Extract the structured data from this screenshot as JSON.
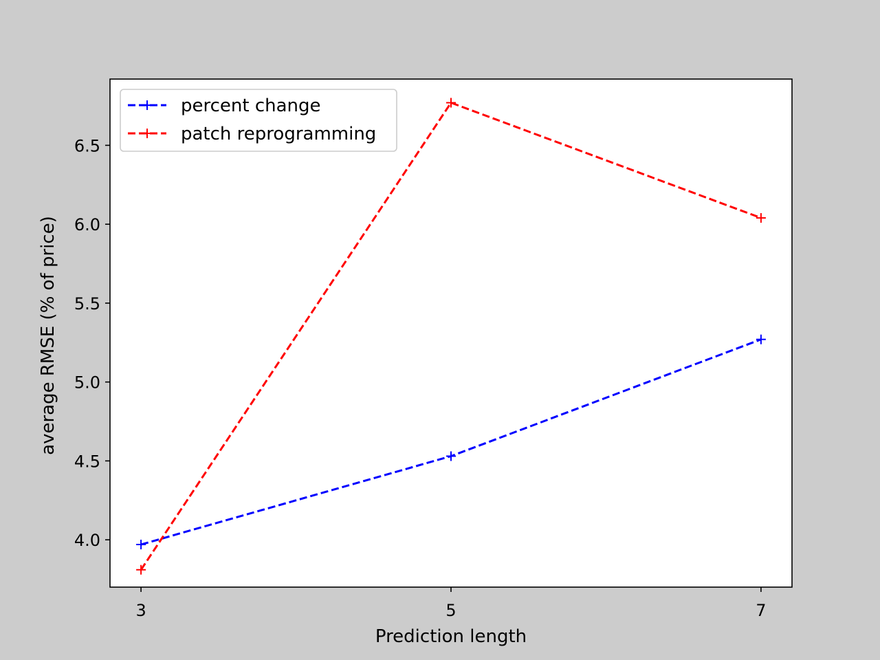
{
  "chart_data": {
    "type": "line",
    "title": "",
    "xlabel": "Prediction length",
    "ylabel": "average RMSE (% of price)",
    "x": [
      3,
      5,
      7
    ],
    "xticks": [
      "3",
      "5",
      "7"
    ],
    "xlim": [
      2.8,
      7.2
    ],
    "yticks": [
      "4.0",
      "4.5",
      "5.0",
      "5.5",
      "6.0",
      "6.5"
    ],
    "ytick_values": [
      4.0,
      4.5,
      5.0,
      5.5,
      6.0,
      6.5
    ],
    "ylim": [
      3.7,
      6.92
    ],
    "grid": false,
    "legend_position": "top-left",
    "series": [
      {
        "name": "percent change",
        "values": [
          3.97,
          4.53,
          5.27
        ],
        "color": "#0000ff",
        "style": "dashed",
        "marker": "+"
      },
      {
        "name": "patch reprogramming",
        "values": [
          3.81,
          6.77,
          6.04
        ],
        "color": "#ff0000",
        "style": "dashed",
        "marker": "+"
      }
    ]
  }
}
